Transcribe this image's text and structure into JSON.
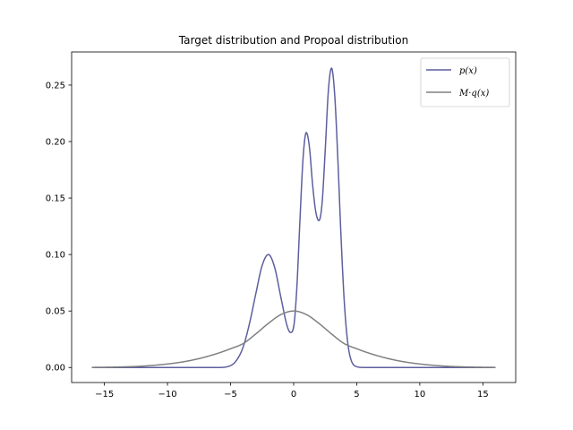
{
  "chart_data": {
    "type": "line",
    "title": "Target distribution and Propoal distribution",
    "xlabel": "",
    "ylabel": "",
    "xlim": [
      -17.6,
      17.6
    ],
    "ylim": [
      -0.0133,
      0.2793
    ],
    "x_ticks": [
      -15,
      -10,
      -5,
      0,
      5,
      10,
      15
    ],
    "x_tick_labels": [
      "−15",
      "−10",
      "−5",
      "0",
      "5",
      "10",
      "15"
    ],
    "y_ticks": [
      0.0,
      0.05,
      0.1,
      0.15,
      0.2,
      0.25
    ],
    "y_tick_labels": [
      "0.00",
      "0.05",
      "0.10",
      "0.15",
      "0.20",
      "0.25"
    ],
    "grid": false,
    "legend_position": "top-right",
    "series": [
      {
        "name": "p(x)",
        "color": "#5d5f9e",
        "x": [
          -16,
          -6,
          -5,
          -4.5,
          -4,
          -3.5,
          -3,
          -2.5,
          -2,
          -1.5,
          -1,
          -0.5,
          -0.25,
          0,
          0.25,
          0.5,
          0.75,
          1,
          1.25,
          1.5,
          1.75,
          2,
          2.25,
          2.5,
          2.75,
          3,
          3.25,
          3.5,
          3.75,
          4,
          4.25,
          4.5,
          5,
          5.5,
          6,
          16
        ],
        "y": [
          0,
          0,
          0.0017,
          0.0068,
          0.0183,
          0.039,
          0.0653,
          0.0902,
          0.1,
          0.0883,
          0.0614,
          0.0361,
          0.031,
          0.036,
          0.0703,
          0.131,
          0.186,
          0.208,
          0.195,
          0.162,
          0.138,
          0.13,
          0.145,
          0.192,
          0.245,
          0.265,
          0.242,
          0.185,
          0.117,
          0.0604,
          0.0253,
          0.0086,
          0.0007,
          4e-05,
          0,
          0
        ]
      },
      {
        "name": "M·q(x)",
        "color": "#808080",
        "x": [
          -16,
          -14,
          -12,
          -10,
          -9,
          -8,
          -7,
          -6,
          -5,
          -4,
          -3,
          -2,
          -1,
          0,
          1,
          2,
          3,
          4,
          5,
          6,
          7,
          8,
          9,
          10,
          12,
          14,
          16
        ],
        "y": [
          0.0001,
          0.0004,
          0.0012,
          0.0031,
          0.0046,
          0.0066,
          0.0093,
          0.0126,
          0.0166,
          0.0212,
          0.0297,
          0.0391,
          0.0469,
          0.05,
          0.0469,
          0.0391,
          0.0297,
          0.0212,
          0.0166,
          0.0126,
          0.0093,
          0.0066,
          0.0046,
          0.0031,
          0.0012,
          0.0004,
          0.0001
        ]
      }
    ]
  },
  "legend": {
    "p_label": "p(x)",
    "mq_label": "M·q(x)"
  }
}
